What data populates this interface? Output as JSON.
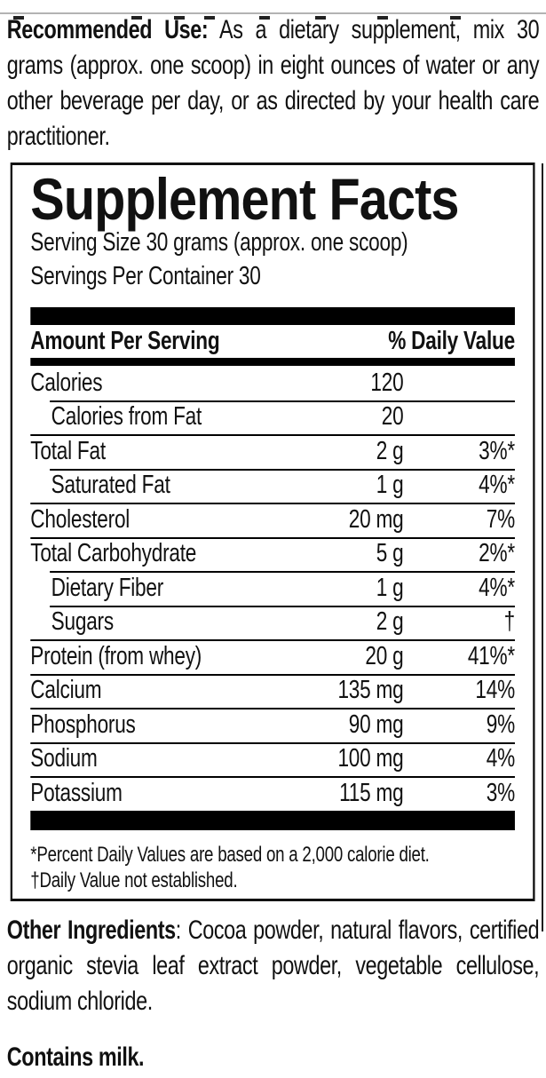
{
  "top_note": {
    "label": "Recommended Use:",
    "text": "As a dietary supplement, mix 30 grams (approx. one scoop) in eight ounces of water or any other beverage per day, or as directed by your health care practitioner."
  },
  "panel": {
    "title": "Supplement Facts",
    "serving_size": "Serving Size 30 grams (approx. one scoop)",
    "servings_per_container": "Servings Per Container 30",
    "columns": {
      "amount_header": "Amount Per Serving",
      "dv_header": "% Daily Value"
    },
    "rows": [
      {
        "label": "Calories",
        "amount": "120",
        "dv": "",
        "indent": false
      },
      {
        "label": "Calories from Fat",
        "amount": "20",
        "dv": "",
        "indent": true
      },
      {
        "label": "Total Fat",
        "amount": "2 g",
        "dv": "3%*",
        "indent": false
      },
      {
        "label": "Saturated Fat",
        "amount": "1 g",
        "dv": "4%*",
        "indent": true
      },
      {
        "label": "Cholesterol",
        "amount": "20 mg",
        "dv": "7%",
        "indent": false
      },
      {
        "label": "Total Carbohydrate",
        "amount": "5 g",
        "dv": "2%*",
        "indent": false
      },
      {
        "label": "Dietary Fiber",
        "amount": "1 g",
        "dv": "4%*",
        "indent": true
      },
      {
        "label": "Sugars",
        "amount": "2 g",
        "dv": "†",
        "indent": true
      },
      {
        "label": "Protein (from whey)",
        "amount": "20 g",
        "dv": "41%*",
        "indent": false
      },
      {
        "label": "Calcium",
        "amount": "135 mg",
        "dv": "14%",
        "indent": false
      },
      {
        "label": "Phosphorus",
        "amount": "90 mg",
        "dv": "9%",
        "indent": false
      },
      {
        "label": "Sodium",
        "amount": "100 mg",
        "dv": "4%",
        "indent": false
      },
      {
        "label": "Potassium",
        "amount": "115 mg",
        "dv": "3%",
        "indent": false
      }
    ],
    "footnotes": [
      "*Percent Daily Values are based on a 2,000 calorie diet.",
      "†Daily Value not established."
    ]
  },
  "other_ingredients": {
    "label": "Other Ingredients",
    "text": ": Cocoa powder, natural flavors, certified organic stevia leaf extract powder, vegetable cellulose, sodium chloride."
  },
  "allergen": "Contains milk.",
  "colors": {
    "text": "#111111",
    "rule_and_bars": "#000000",
    "background": "#ffffff"
  }
}
